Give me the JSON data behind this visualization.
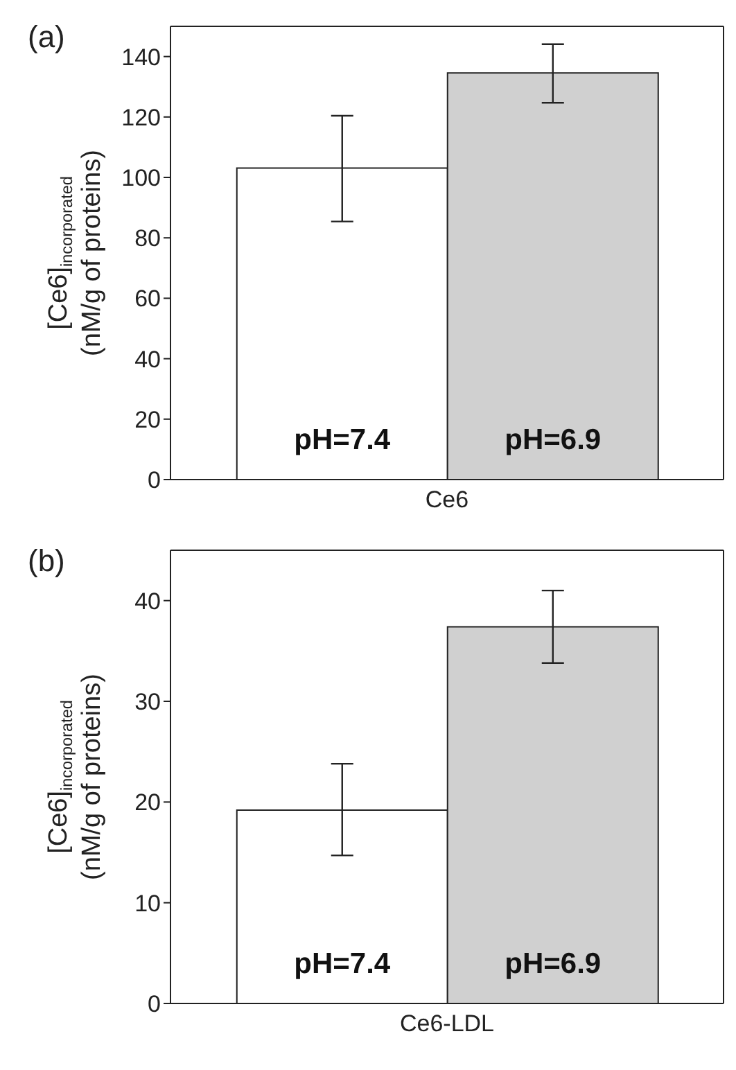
{
  "chart_data": [
    {
      "type": "bar",
      "title": "(a)",
      "ylabel": "[Ce6]$_{incorporated}$\n(nM/g of proteins)",
      "categories": [
        "Ce6"
      ],
      "ylim": [
        0,
        150
      ],
      "yticks": [
        0,
        20,
        40,
        60,
        80,
        100,
        120,
        140
      ],
      "series": [
        {
          "name": "pH=7.4",
          "color": "#ffffff",
          "values": [
            103.1
          ],
          "errors": [
            [
              85.4,
              120.4
            ]
          ]
        },
        {
          "name": "pH=6.9",
          "color": "#d0d0d0",
          "values": [
            134.6
          ],
          "errors": [
            [
              124.7,
              144.1
            ]
          ]
        }
      ]
    },
    {
      "type": "bar",
      "title": "(b)",
      "ylabel": "[Ce6]$_{incorporated}$\n(nM/g of proteins)",
      "categories": [
        "Ce6-LDL"
      ],
      "ylim": [
        0,
        45
      ],
      "yticks": [
        0,
        10,
        20,
        30,
        40
      ],
      "series": [
        {
          "name": "pH=7.4",
          "color": "#ffffff",
          "values": [
            19.2
          ],
          "errors": [
            [
              14.7,
              23.8
            ]
          ]
        },
        {
          "name": "pH=6.9",
          "color": "#d0d0d0",
          "values": [
            37.4
          ],
          "errors": [
            [
              33.8,
              41.0
            ]
          ]
        }
      ]
    }
  ]
}
